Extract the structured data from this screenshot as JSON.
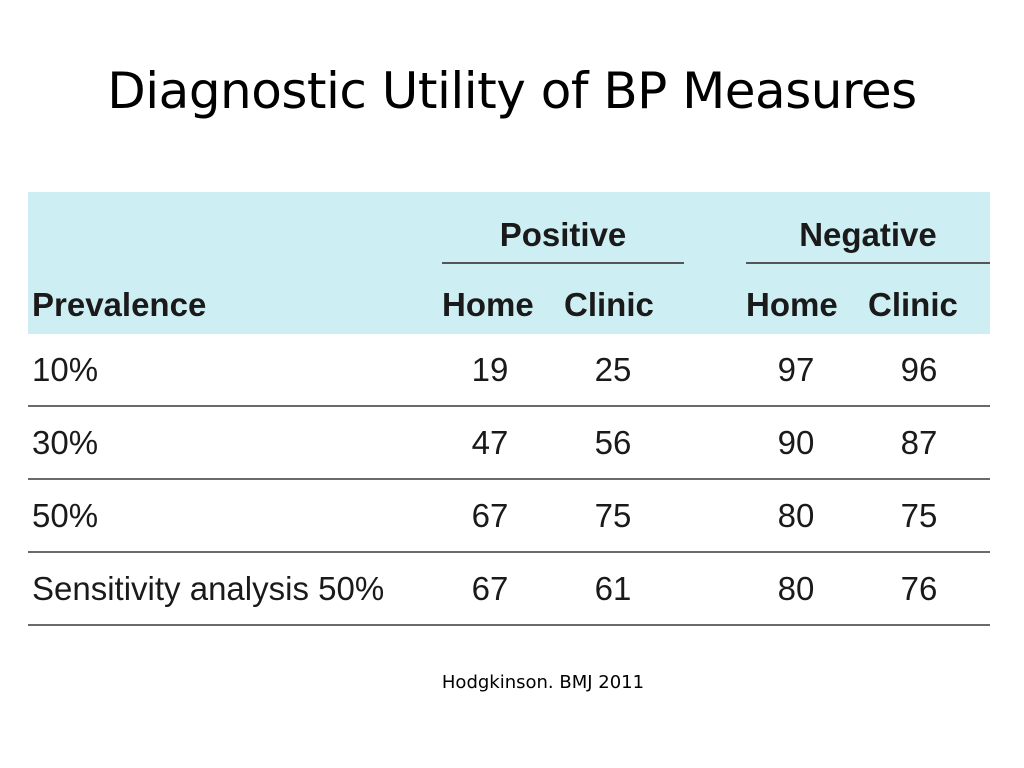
{
  "slide": {
    "title": "Diagnostic Utility of BP Measures",
    "citation": "Hodgkinson.  BMJ 2011"
  },
  "table": {
    "row_header": "Prevalence",
    "groups": [
      {
        "label": "Positive",
        "columns": [
          "Home",
          "Clinic"
        ]
      },
      {
        "label": "Negative",
        "columns": [
          "Home",
          "Clinic"
        ]
      }
    ],
    "rows": [
      {
        "label": "10%",
        "values": [
          "19",
          "25",
          "97",
          "96"
        ]
      },
      {
        "label": "30%",
        "values": [
          "47",
          "56",
          "90",
          "87"
        ]
      },
      {
        "label": "50%",
        "values": [
          "67",
          "75",
          "80",
          "75"
        ]
      },
      {
        "label": "Sensitivity analysis 50%",
        "values": [
          "67",
          "61",
          "80",
          "76"
        ]
      }
    ]
  },
  "colors": {
    "header_background": "#cdeef2",
    "rule": "#6a6a6a"
  }
}
